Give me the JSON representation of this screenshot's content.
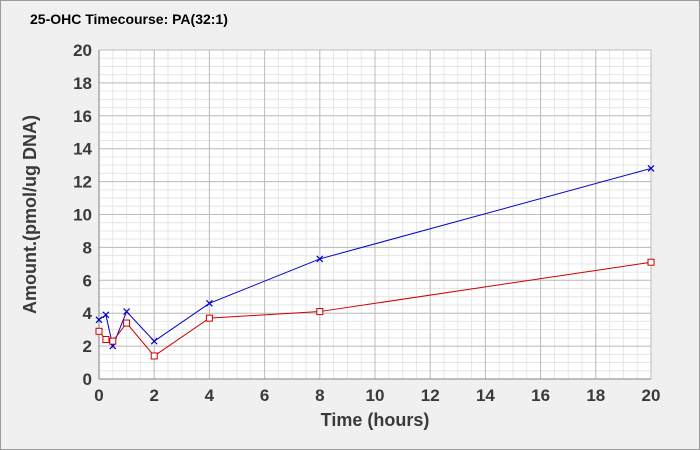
{
  "chart_data": {
    "type": "line",
    "title": "25-OHC Timecourse: PA(32:1)",
    "xlabel": "Time (hours)",
    "ylabel": "Amount.(pmol/ug DNA)",
    "xlim": [
      0,
      20
    ],
    "ylim": [
      0,
      20
    ],
    "x_ticks": [
      0,
      2,
      4,
      6,
      8,
      10,
      12,
      14,
      16,
      18,
      20
    ],
    "y_ticks": [
      0,
      2,
      4,
      6,
      8,
      10,
      12,
      14,
      16,
      18,
      20
    ],
    "grid": true,
    "x": [
      0,
      0.25,
      0.5,
      1,
      2,
      4,
      8,
      20
    ],
    "series": [
      {
        "color": "#0000cc",
        "marker": "x",
        "values": [
          3.6,
          3.9,
          2.0,
          4.1,
          2.3,
          4.6,
          7.3,
          12.8
        ]
      },
      {
        "color": "#cc0000",
        "marker": "square",
        "values": [
          2.9,
          2.4,
          2.3,
          3.4,
          1.4,
          3.7,
          4.1,
          7.1
        ]
      }
    ]
  }
}
